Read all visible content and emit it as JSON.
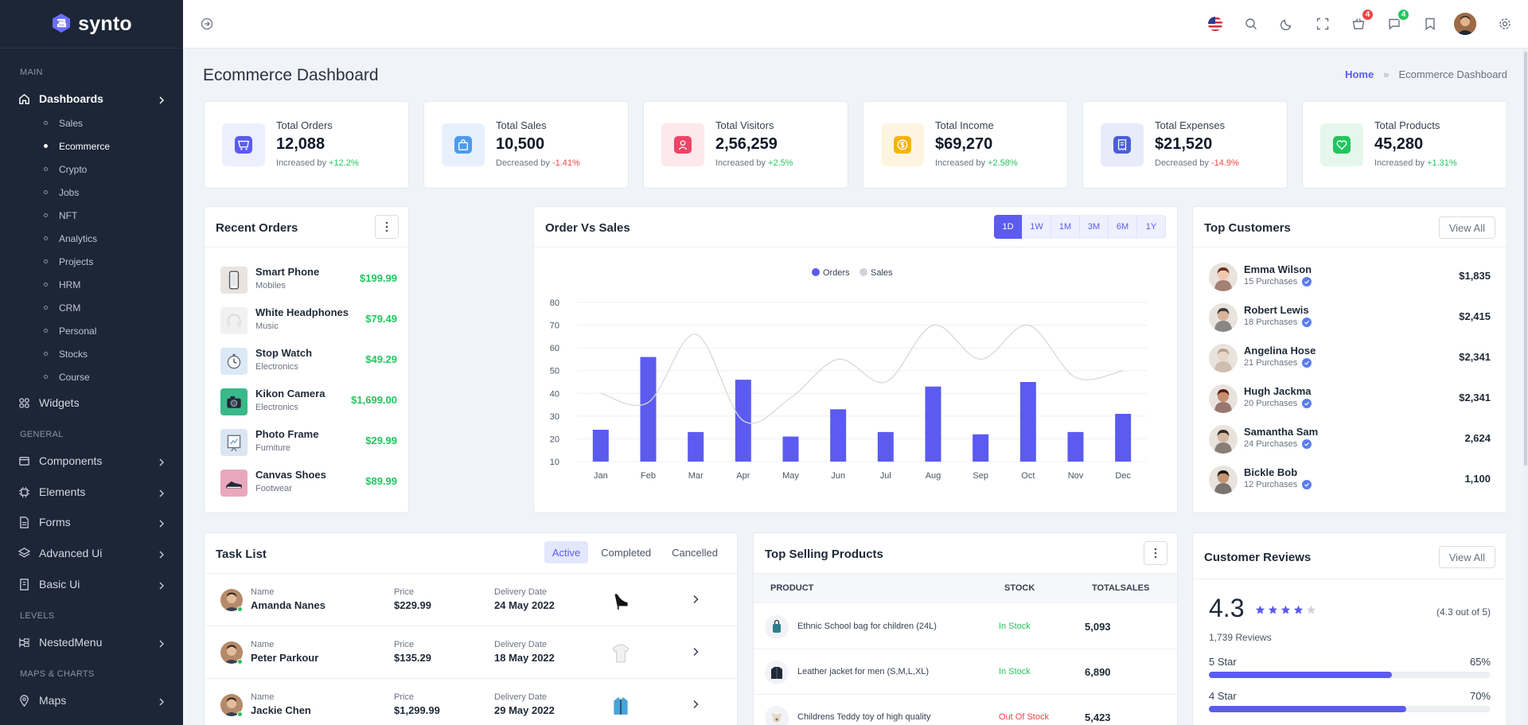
{
  "app": {
    "brand": "synto"
  },
  "sidebar": {
    "sections": [
      "MAIN",
      "GENERAL",
      "LEVELS",
      "MAPS & CHARTS"
    ],
    "dashboards": "Dashboards",
    "dashboard_items": [
      "Sales",
      "Ecommerce",
      "Crypto",
      "Jobs",
      "NFT",
      "Analytics",
      "Projects",
      "HRM",
      "CRM",
      "Personal",
      "Stocks",
      "Course"
    ],
    "active_item": "Ecommerce",
    "widgets": "Widgets",
    "general_items": [
      "Components",
      "Elements",
      "Forms",
      "Advanced Ui",
      "Basic Ui"
    ],
    "nested": "NestedMenu",
    "maps": "Maps"
  },
  "header": {
    "cart_count": "4",
    "messages_count": "4",
    "colors": {
      "accent": "#5b5bf0",
      "danger": "#ef4444",
      "success": "#22c55e"
    }
  },
  "page": {
    "title": "Ecommerce Dashboard",
    "breadcrumb_home": "Home",
    "breadcrumb_sep": "»",
    "breadcrumb_current": "Ecommerce Dashboard"
  },
  "stats": [
    {
      "label": "Total Orders",
      "value": "12,088",
      "prefix": "Increased by",
      "change": "+12.2%",
      "dir": "up",
      "icon": "cart-icon",
      "bg": "#eceffe",
      "fg": "#5b5bf0"
    },
    {
      "label": "Total Sales",
      "value": "10,500",
      "prefix": "Decreased by",
      "change": "-1.41%",
      "dir": "down",
      "icon": "bag-icon",
      "bg": "#e7f1fd",
      "fg": "#4c9bf0"
    },
    {
      "label": "Total Visitors",
      "value": "2,56,259",
      "prefix": "Increased by",
      "change": "+2.5%",
      "dir": "up",
      "icon": "user-icon",
      "bg": "#fde8ec",
      "fg": "#ef4466"
    },
    {
      "label": "Total Income",
      "value": "$69,270",
      "prefix": "Increased by",
      "change": "+2.58%",
      "dir": "up",
      "icon": "dollar-icon",
      "bg": "#fef5e1",
      "fg": "#f5b301"
    },
    {
      "label": "Total Expenses",
      "value": "$21,520",
      "prefix": "Decreased by",
      "change": "-14.9%",
      "dir": "down",
      "icon": "receipt-icon",
      "bg": "#e8ebf9",
      "fg": "#4a5fd6"
    },
    {
      "label": "Total Products",
      "value": "45,280",
      "prefix": "Increased by",
      "change": "+1.31%",
      "dir": "up",
      "icon": "heart-icon",
      "bg": "#e5f7ec",
      "fg": "#22c55e"
    }
  ],
  "recent_orders": {
    "title": "Recent Orders",
    "items": [
      {
        "name": "Smart Phone",
        "category": "Mobiles",
        "price": "$199.99",
        "icon": "phone-icon",
        "bg": "#e9e4df"
      },
      {
        "name": "White Headphones",
        "category": "Music",
        "price": "$79.49",
        "icon": "headphones-icon",
        "bg": "#f1f1f1"
      },
      {
        "name": "Stop Watch",
        "category": "Electronics",
        "price": "$49.29",
        "icon": "stopwatch-icon",
        "bg": "#dbe9f7"
      },
      {
        "name": "Kikon Camera",
        "category": "Electronics",
        "price": "$1,699.00",
        "icon": "camera-icon",
        "bg": "#3bb88a"
      },
      {
        "name": "Photo Frame",
        "category": "Furniture",
        "price": "$29.99",
        "icon": "frame-icon",
        "bg": "#dbe6f2"
      },
      {
        "name": "Canvas Shoes",
        "category": "Footwear",
        "price": "$89.99",
        "icon": "shoes-icon",
        "bg": "#e9a7bd"
      }
    ]
  },
  "order_vs_sales": {
    "title": "Order Vs Sales",
    "ranges": [
      "1D",
      "1W",
      "1M",
      "3M",
      "6M",
      "1Y"
    ],
    "active_range": "1D"
  },
  "chart_data": {
    "type": "bar",
    "title": "",
    "categories": [
      "Jan",
      "Feb",
      "Mar",
      "Apr",
      "May",
      "Jun",
      "Jul",
      "Aug",
      "Sep",
      "Oct",
      "Nov",
      "Dec"
    ],
    "series": [
      {
        "name": "Orders",
        "type": "bar",
        "color": "#5b5bf0",
        "values": [
          24,
          56,
          23,
          46,
          21,
          33,
          23,
          43,
          22,
          45,
          23,
          31
        ]
      },
      {
        "name": "Sales",
        "type": "line",
        "color": "#d6d9df",
        "values": [
          40,
          36,
          66,
          28,
          38,
          55,
          45,
          70,
          55,
          70,
          47,
          50
        ]
      }
    ],
    "ylim": [
      10,
      80
    ],
    "yticks": [
      10,
      20,
      30,
      40,
      50,
      60,
      70,
      80
    ],
    "legend": "top-center",
    "grid": true
  },
  "top_customers": {
    "title": "Top Customers",
    "view_all": "View All",
    "items": [
      {
        "name": "Emma Wilson",
        "purchases": "15 Purchases",
        "amount": "$1,835",
        "skin": "#f3c7b0",
        "hair": "#6b2f1f"
      },
      {
        "name": "Robert Lewis",
        "purchases": "18 Purchases",
        "amount": "$2,415",
        "skin": "#d9b49a",
        "hair": "#3b3b3b"
      },
      {
        "name": "Angelina Hose",
        "purchases": "21 Purchases",
        "amount": "$2,341",
        "skin": "#e8d6c9",
        "hair": "#b9a08a"
      },
      {
        "name": "Hugh Jackma",
        "purchases": "20 Purchases",
        "amount": "$2,341",
        "skin": "#c98c6d",
        "hair": "#5a1d17"
      },
      {
        "name": "Samantha Sam",
        "purchases": "24 Purchases",
        "amount": "2,624",
        "skin": "#d6b9a4",
        "hair": "#3a2a22"
      },
      {
        "name": "Bickle Bob",
        "purchases": "12 Purchases",
        "amount": "1,100",
        "skin": "#c3946f",
        "hair": "#1f1a15"
      }
    ]
  },
  "task_list": {
    "title": "Task List",
    "tabs": [
      "Active",
      "Completed",
      "Cancelled"
    ],
    "active_tab": "Active",
    "col_name": "Name",
    "col_price": "Price",
    "col_date": "Delivery Date",
    "items": [
      {
        "name": "Amanda Nanes",
        "price": "$229.99",
        "date": "24 May 2022",
        "product_icon": "heels-icon"
      },
      {
        "name": "Peter Parkour",
        "price": "$135.29",
        "date": "18 May 2022",
        "product_icon": "sweater-icon"
      },
      {
        "name": "Jackie Chen",
        "price": "$1,299.99",
        "date": "29 May 2022",
        "product_icon": "jacket-icon"
      }
    ]
  },
  "top_selling": {
    "title": "Top Selling Products",
    "headers": [
      "PRODUCT",
      "STOCK",
      "TOTALSALES"
    ],
    "items": [
      {
        "name": "Ethnic School bag for children (24L)",
        "stock": "In Stock",
        "sales": "5,093",
        "status": "in",
        "icon": "school-bag-icon"
      },
      {
        "name": "Leather jacket for men (S,M,L,XL)",
        "stock": "In Stock",
        "sales": "6,890",
        "status": "in",
        "icon": "leather-jacket-icon"
      },
      {
        "name": "Childrens Teddy toy of high quality",
        "stock": "Out Of Stock",
        "sales": "5,423",
        "status": "out",
        "icon": "teddy-icon"
      }
    ]
  },
  "reviews": {
    "title": "Customer Reviews",
    "view_all": "View All",
    "rating": "4.3",
    "rating_text": "(4.3 out of 5)",
    "count": "1,739 Reviews",
    "stars_filled": 4,
    "bars": [
      {
        "label": "5 Star",
        "percent": "65%",
        "value": 0.65
      },
      {
        "label": "4 Star",
        "percent": "70%",
        "value": 0.7
      }
    ]
  }
}
